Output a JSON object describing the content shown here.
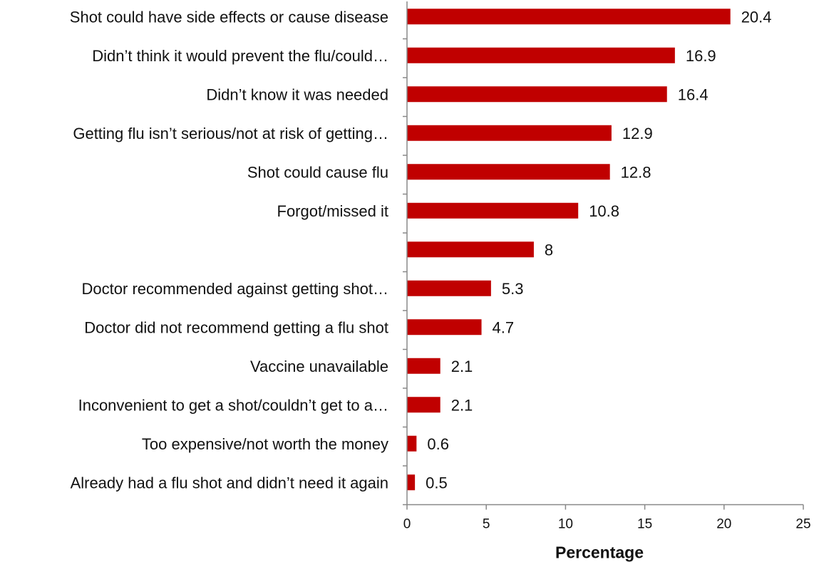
{
  "chart_data": {
    "type": "bar",
    "orientation": "horizontal",
    "title": "",
    "xlabel": "Percentage",
    "ylabel": "",
    "xlim": [
      0,
      25
    ],
    "x_ticks": [
      0,
      5,
      10,
      15,
      20,
      25
    ],
    "grid": false,
    "legend": "none",
    "bar_color": "#C00000",
    "categories": [
      "Shot could have side effects or cause disease",
      "Didn’t think it would prevent the flu/could…",
      "Didn’t know it was needed",
      "Getting flu isn’t serious/not at risk of getting…",
      "Shot could cause flu",
      "Forgot/missed it",
      "",
      "Doctor recommended against getting shot…",
      "Doctor did not recommend getting a flu shot",
      "Vaccine unavailable",
      "Inconvenient to get a shot/couldn’t get to a…",
      "Too expensive/not worth the money",
      "Already had a flu shot and didn’t need it again"
    ],
    "values": [
      20.4,
      16.9,
      16.4,
      12.9,
      12.8,
      10.8,
      8,
      5.3,
      4.7,
      2.1,
      2.1,
      0.6,
      0.5
    ],
    "value_labels": [
      "20.4",
      "16.9",
      "16.4",
      "12.9",
      "12.8",
      "10.8",
      "8",
      "5.3",
      "4.7",
      "2.1",
      "2.1",
      "0.6",
      "0.5"
    ]
  }
}
